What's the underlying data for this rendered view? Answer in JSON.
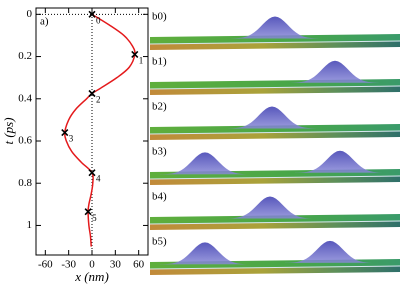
{
  "chart_data": {
    "type": "line",
    "panel_label": "a)",
    "xlabel": "x (nm)",
    "ylabel": "t (ps)",
    "color": "#e41a1c",
    "marker_color": "#000000",
    "xlim": [
      -72,
      72
    ],
    "xticks": [
      -60,
      -30,
      0,
      30,
      60
    ],
    "ylim": [
      -0.03,
      1.14
    ],
    "yticks": [
      0,
      0.2,
      0.4,
      0.6,
      0.8,
      1
    ],
    "invert_y": true,
    "zero_lines": true,
    "curve": {
      "x": [
        0,
        22,
        41,
        52,
        55,
        48,
        32,
        11,
        0,
        -7,
        -21,
        -30,
        -35,
        -33,
        -26,
        -14,
        0,
        1,
        -1,
        -4,
        -5,
        -4,
        -2,
        -1
      ],
      "y": [
        0,
        0.05,
        0.1,
        0.15,
        0.19,
        0.25,
        0.3,
        0.35,
        0.375,
        0.4,
        0.45,
        0.5,
        0.56,
        0.6,
        0.65,
        0.7,
        0.75,
        0.8,
        0.85,
        0.9,
        0.935,
        1.0,
        1.05,
        1.1
      ]
    },
    "markers": {
      "x": [
        0,
        55,
        0,
        -35,
        0,
        -5
      ],
      "y": [
        0,
        0.19,
        0.375,
        0.56,
        0.75,
        0.935
      ],
      "labels": [
        "0",
        "1",
        "2",
        "3",
        "4",
        "5"
      ]
    }
  },
  "panels": {
    "labels": [
      "b0)",
      "b1)",
      "b2)",
      "b3)",
      "b4)",
      "b5)"
    ]
  }
}
